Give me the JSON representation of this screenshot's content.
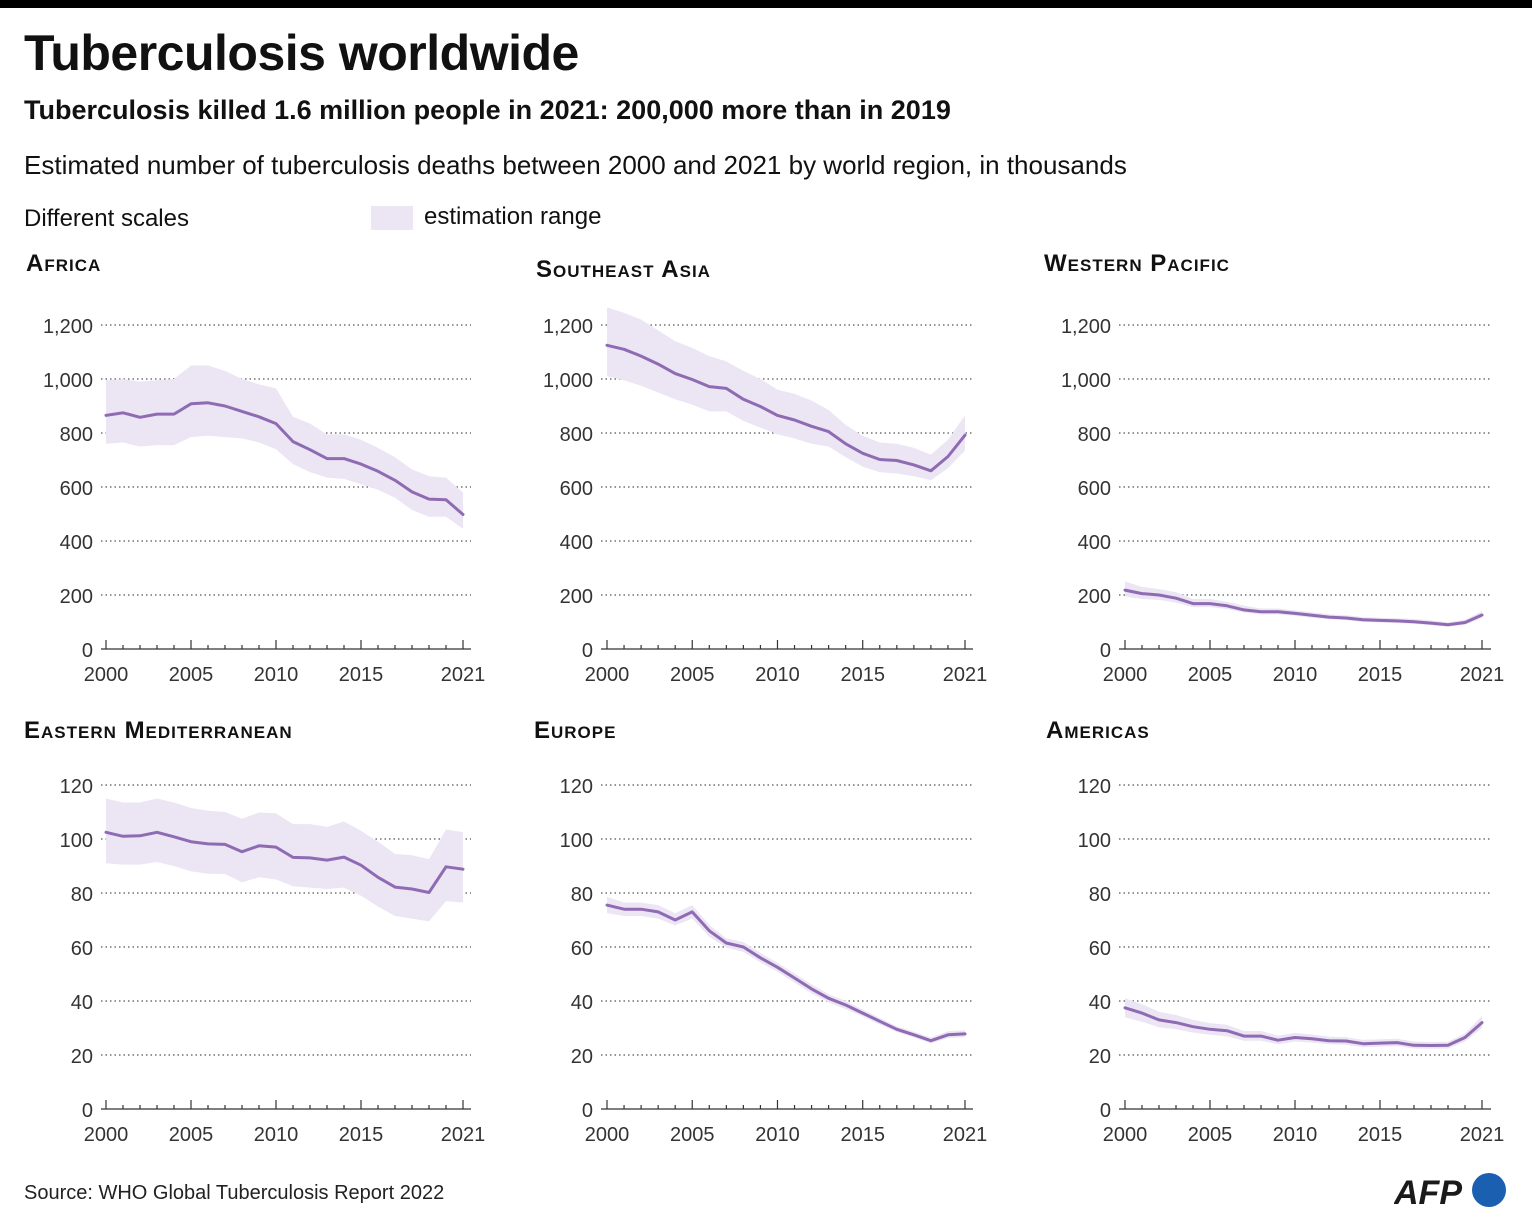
{
  "header": {
    "title": "Tuberculosis worldwide",
    "subtitle": "Tuberculosis killed  1.6 million people in 2021:  200,000 more than in 2019",
    "description": "Estimated number of tuberculosis deaths between 2000 and 2021 by world region, in thousands",
    "scales_note": "Different scales",
    "legend_label": "estimation range"
  },
  "colors": {
    "line": "#8e6bb3",
    "band": "#ece5f4",
    "grid": "#555555",
    "logo_blue": "#1b5fb0"
  },
  "footer": {
    "source": "Source: WHO Global Tuberculosis Report 2022",
    "logo_text": "AFP"
  },
  "chart_data": [
    {
      "type": "line",
      "title": "Africa",
      "unit": "thousands",
      "x": [
        2000,
        2001,
        2002,
        2003,
        2004,
        2005,
        2006,
        2007,
        2008,
        2009,
        2010,
        2011,
        2012,
        2013,
        2014,
        2015,
        2016,
        2017,
        2018,
        2019,
        2020,
        2021
      ],
      "values": [
        865,
        875,
        858,
        870,
        870,
        908,
        912,
        900,
        880,
        860,
        835,
        768,
        738,
        705,
        705,
        685,
        658,
        625,
        582,
        555,
        553,
        498
      ],
      "low": [
        760,
        765,
        750,
        755,
        755,
        785,
        790,
        785,
        780,
        765,
        740,
        685,
        655,
        635,
        630,
        610,
        590,
        560,
        515,
        490,
        490,
        445
      ],
      "high": [
        995,
        1000,
        990,
        995,
        1000,
        1050,
        1050,
        1030,
        1000,
        980,
        965,
        860,
        835,
        795,
        795,
        775,
        745,
        710,
        665,
        640,
        635,
        580
      ],
      "ylim": [
        0,
        1200
      ],
      "yticks": [
        "0",
        "200",
        "400",
        "600",
        "800",
        "1,000",
        "1,200"
      ],
      "xtick_labels": [
        "2000",
        "2005",
        "2010",
        "2015",
        "2021"
      ]
    },
    {
      "type": "line",
      "title": "Southeast Asia",
      "unit": "thousands",
      "x": [
        2000,
        2001,
        2002,
        2003,
        2004,
        2005,
        2006,
        2007,
        2008,
        2009,
        2010,
        2011,
        2012,
        2013,
        2014,
        2015,
        2016,
        2017,
        2018,
        2019,
        2020,
        2021
      ],
      "values": [
        1125,
        1110,
        1085,
        1055,
        1020,
        998,
        972,
        965,
        925,
        898,
        865,
        848,
        825,
        805,
        760,
        725,
        702,
        698,
        682,
        660,
        713,
        792
      ],
      "low": [
        1010,
        995,
        975,
        950,
        925,
        905,
        880,
        880,
        845,
        820,
        795,
        780,
        760,
        750,
        710,
        675,
        655,
        650,
        640,
        625,
        670,
        735
      ],
      "high": [
        1265,
        1245,
        1220,
        1180,
        1140,
        1115,
        1085,
        1065,
        1030,
        1000,
        960,
        945,
        920,
        885,
        830,
        790,
        765,
        760,
        745,
        720,
        775,
        865
      ],
      "ylim": [
        0,
        1200
      ],
      "yticks": [
        "0",
        "200",
        "400",
        "600",
        "800",
        "1,000",
        "1,200"
      ],
      "xtick_labels": [
        "2000",
        "2005",
        "2010",
        "2015",
        "2021"
      ]
    },
    {
      "type": "line",
      "title": "Western Pacific",
      "unit": "thousands",
      "x": [
        2000,
        2001,
        2002,
        2003,
        2004,
        2005,
        2006,
        2007,
        2008,
        2009,
        2010,
        2011,
        2012,
        2013,
        2014,
        2015,
        2016,
        2017,
        2018,
        2019,
        2020,
        2021
      ],
      "values": [
        218,
        205,
        200,
        188,
        168,
        168,
        160,
        145,
        138,
        138,
        132,
        125,
        118,
        115,
        108,
        106,
        104,
        101,
        96,
        90,
        98,
        126
      ],
      "low": [
        195,
        185,
        182,
        172,
        155,
        155,
        148,
        135,
        128,
        128,
        123,
        116,
        110,
        107,
        100,
        98,
        96,
        93,
        88,
        83,
        90,
        115
      ],
      "high": [
        250,
        230,
        222,
        210,
        185,
        185,
        175,
        160,
        150,
        150,
        143,
        136,
        128,
        125,
        118,
        116,
        114,
        111,
        106,
        99,
        108,
        140
      ],
      "ylim": [
        0,
        1200
      ],
      "yticks": [
        "0",
        "200",
        "400",
        "600",
        "800",
        "1,000",
        "1,200"
      ],
      "xtick_labels": [
        "2000",
        "2005",
        "2010",
        "2015",
        "2021"
      ]
    },
    {
      "type": "line",
      "title": "Eastern Mediterranean",
      "unit": "thousands",
      "x": [
        2000,
        2001,
        2002,
        2003,
        2004,
        2005,
        2006,
        2007,
        2008,
        2009,
        2010,
        2011,
        2012,
        2013,
        2014,
        2015,
        2016,
        2017,
        2018,
        2019,
        2020,
        2021
      ],
      "values": [
        102.5,
        101,
        101.2,
        102.5,
        100.8,
        99,
        98.2,
        98,
        95.3,
        97.5,
        97,
        93.2,
        93,
        92.2,
        93.3,
        90.3,
        85.8,
        82.2,
        81.5,
        80.2,
        89.7,
        88.8
      ],
      "low": [
        91,
        90.5,
        90.5,
        91.5,
        90,
        88,
        87.2,
        87,
        84,
        85.8,
        85,
        82.5,
        82,
        81.5,
        82,
        79,
        75,
        71.5,
        70.5,
        69.5,
        77,
        76.5
      ],
      "high": [
        115,
        113.5,
        113.5,
        115,
        113.5,
        111.5,
        110.5,
        110,
        107.5,
        109.8,
        109.5,
        105.5,
        105.5,
        104.5,
        106.5,
        103,
        99,
        94.5,
        94,
        92.5,
        103.5,
        102.5
      ],
      "ylim": [
        0,
        120
      ],
      "yticks": [
        "0",
        "20",
        "40",
        "60",
        "80",
        "100",
        "120"
      ],
      "xtick_labels": [
        "2000",
        "2005",
        "2010",
        "2015",
        "2021"
      ]
    },
    {
      "type": "line",
      "title": "Europe",
      "unit": "thousands",
      "x": [
        2000,
        2001,
        2002,
        2003,
        2004,
        2005,
        2006,
        2007,
        2008,
        2009,
        2010,
        2011,
        2012,
        2013,
        2014,
        2015,
        2016,
        2017,
        2018,
        2019,
        2020,
        2021
      ],
      "values": [
        75.5,
        74,
        74,
        73,
        70,
        73,
        66,
        61.5,
        60,
        56,
        52.5,
        48.5,
        44.5,
        41,
        38.5,
        35.5,
        32.5,
        29.5,
        27.5,
        25.3,
        27.5,
        27.8
      ],
      "low": [
        72.5,
        71.5,
        71.5,
        70.5,
        68,
        70.5,
        63.8,
        59.8,
        58.2,
        54.3,
        50.8,
        46.8,
        42.8,
        39.5,
        37,
        34.3,
        31.3,
        28.5,
        26.5,
        24.3,
        26.3,
        26.6
      ],
      "high": [
        78.5,
        76.5,
        76.5,
        75.5,
        72.5,
        75.5,
        68.2,
        63.2,
        61.8,
        57.8,
        54.2,
        50.2,
        46.2,
        42.5,
        40,
        36.8,
        33.7,
        30.6,
        28.6,
        26.5,
        28.8,
        29.2
      ],
      "ylim": [
        0,
        120
      ],
      "yticks": [
        "0",
        "20",
        "40",
        "60",
        "80",
        "100",
        "120"
      ],
      "xtick_labels": [
        "2000",
        "2005",
        "2010",
        "2015",
        "2021"
      ]
    },
    {
      "type": "line",
      "title": "Americas",
      "unit": "thousands",
      "x": [
        2000,
        2001,
        2002,
        2003,
        2004,
        2005,
        2006,
        2007,
        2008,
        2009,
        2010,
        2011,
        2012,
        2013,
        2014,
        2015,
        2016,
        2017,
        2018,
        2019,
        2020,
        2021
      ],
      "values": [
        37.5,
        35.5,
        33,
        32,
        30.5,
        29.5,
        29,
        27,
        27,
        25.5,
        26.5,
        26,
        25.3,
        25.2,
        24.2,
        24.4,
        24.6,
        23.6,
        23.5,
        23.6,
        26.5,
        32
      ],
      "low": [
        34,
        32.3,
        30.3,
        29.5,
        28.3,
        27.5,
        26.9,
        25.3,
        25.3,
        24,
        25,
        24.6,
        24,
        23.8,
        22.9,
        23.1,
        23.3,
        22.4,
        22.3,
        22.4,
        25,
        30
      ],
      "high": [
        41,
        38.8,
        36,
        34.8,
        33,
        31.8,
        31.2,
        28.9,
        28.9,
        27.2,
        28.2,
        27.6,
        26.8,
        26.6,
        25.6,
        25.8,
        26,
        25,
        24.8,
        24.9,
        28,
        34.5
      ],
      "ylim": [
        0,
        120
      ],
      "yticks": [
        "0",
        "20",
        "40",
        "60",
        "80",
        "100",
        "120"
      ],
      "xtick_labels": [
        "2000",
        "2005",
        "2010",
        "2015",
        "2021"
      ]
    }
  ]
}
